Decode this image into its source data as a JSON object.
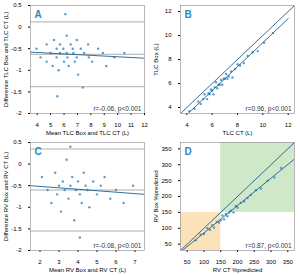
{
  "chart_data": [
    {
      "type": "scatter",
      "title": "A",
      "x_label": "Mean TLC Box and TLC CT (L)",
      "y_label": "Difference TLC Box and TLC CT (L)",
      "x": [
        3.95,
        4.25,
        4.7,
        4.7,
        5.0,
        5.25,
        5.15,
        5.45,
        5.45,
        5.7,
        5.7,
        5.6,
        5.95,
        6.2,
        6.0,
        6.2,
        6.25,
        6.5,
        6.35,
        6.65,
        6.7,
        6.95,
        6.8,
        6.95,
        7.25,
        7.05,
        7.5,
        7.8,
        7.85,
        8.1,
        8.55,
        8.9,
        9.15,
        9.75,
        10.5,
        6.1,
        5.5,
        7.4
      ],
      "y": [
        -0.5,
        -0.7,
        -0.4,
        -0.8,
        -0.6,
        -0.3,
        -0.9,
        -0.5,
        -0.7,
        -0.4,
        -0.6,
        -1.0,
        -0.5,
        -0.2,
        -0.8,
        -0.6,
        -0.7,
        -0.4,
        -0.9,
        -0.5,
        -0.6,
        -0.3,
        -0.8,
        -0.7,
        -0.5,
        -1.1,
        -0.6,
        -0.4,
        -0.7,
        -0.8,
        -0.5,
        -0.6,
        -0.9,
        -0.7,
        -0.6,
        0.3,
        -1.6,
        -1.4
      ],
      "color": "#2e86c1",
      "xlim": [
        3.5,
        12
      ],
      "ylim": [
        -2,
        0.5
      ],
      "xticks": [
        4,
        5,
        6,
        7,
        8,
        9,
        10,
        11,
        12
      ],
      "yticks": [
        -2,
        -1.5,
        -1,
        -0.5,
        0,
        0.5
      ],
      "annotation": "r=-0.06, p<0.001",
      "hlines": [
        0.12,
        -0.63,
        -1.38
      ],
      "lines": [
        {
          "x": [
            3.5,
            12
          ],
          "y": [
            -0.58,
            -0.72
          ],
          "color": "#1f5f8b"
        }
      ]
    },
    {
      "type": "scatter",
      "title": "B",
      "x_label": "TLC CT (L)",
      "y_label": "TLC Box (L)",
      "x": [
        4.2,
        4.6,
        4.9,
        5.1,
        5.3,
        5.4,
        5.6,
        5.7,
        5.8,
        5.9,
        6.0,
        6.1,
        6.2,
        6.3,
        6.4,
        6.5,
        6.6,
        6.7,
        6.8,
        6.9,
        7.0,
        7.1,
        7.2,
        7.3,
        7.5,
        7.6,
        7.8,
        8.0,
        8.2,
        8.5,
        8.8,
        9.2,
        9.6,
        10.1,
        10.8
      ],
      "y": [
        3.7,
        3.9,
        4.5,
        4.3,
        4.7,
        5.1,
        4.7,
        5.2,
        5.1,
        5.5,
        5.4,
        5.1,
        5.7,
        6.1,
        5.6,
        5.9,
        5.9,
        6.3,
        5.9,
        6.4,
        6.4,
        6.8,
        6.4,
        6.6,
        7.0,
        6.5,
        7.2,
        7.6,
        7.5,
        7.7,
        8.3,
        8.6,
        8.7,
        9.4,
        10.2
      ],
      "color": "#2e86c1",
      "xlim": [
        3.5,
        12.5
      ],
      "ylim": [
        3.5,
        12.5
      ],
      "xticks": [
        4,
        6,
        8,
        10,
        12
      ],
      "yticks": [
        4,
        6,
        8,
        10,
        12
      ],
      "annotation": "r=0.96, p<0.001",
      "hlines": [],
      "lines": [
        {
          "x": [
            3.5,
            12.5
          ],
          "y": [
            3.5,
            12.5
          ],
          "color": "#1f5f8b"
        },
        {
          "x": [
            4,
            12
          ],
          "y": [
            3.4,
            11.4
          ],
          "color": "#1f5f8b"
        }
      ]
    },
    {
      "type": "scatter",
      "title": "C",
      "x_label": "Mean RV Box and RV CT (L)",
      "y_label": "Difference RV Box and RV CT (L)",
      "x": [
        2.1,
        2.4,
        2.6,
        2.8,
        2.9,
        3.0,
        3.1,
        3.2,
        3.3,
        3.4,
        3.5,
        3.6,
        3.7,
        3.8,
        3.9,
        4.0,
        4.1,
        4.2,
        4.3,
        4.4,
        4.5,
        4.6,
        4.8,
        5.0,
        5.2,
        5.4,
        5.7,
        6.0,
        6.4,
        6.9,
        3.6,
        4.1
      ],
      "y": [
        -0.3,
        -0.6,
        -0.9,
        -0.2,
        -0.7,
        -0.5,
        -1.1,
        -0.4,
        -0.6,
        0.1,
        -0.8,
        -0.5,
        -0.3,
        -1.3,
        -0.6,
        -0.4,
        -0.7,
        -0.9,
        -0.2,
        -0.5,
        -0.6,
        -1.0,
        -0.4,
        -0.7,
        -0.5,
        -0.3,
        -0.8,
        -0.6,
        -0.9,
        -0.5,
        0.4,
        -1.7
      ],
      "color": "#2e86c1",
      "xlim": [
        1.5,
        7.5
      ],
      "ylim": [
        -2,
        0.5
      ],
      "xticks": [
        2,
        3,
        4,
        5,
        6,
        7
      ],
      "yticks": [
        -2,
        -1.5,
        -1,
        -0.5,
        0,
        0.5
      ],
      "annotation": "r=-0.08, p<0.001",
      "hlines": [
        0.35,
        -0.6,
        -1.55
      ],
      "lines": [
        {
          "x": [
            1.5,
            7.5
          ],
          "y": [
            -0.5,
            -0.7
          ],
          "color": "#1f5f8b"
        }
      ]
    },
    {
      "type": "scatter",
      "title": "D",
      "x_label": "RV CT %predicted",
      "y_label": "RV Box %predicted",
      "x": [
        75,
        90,
        100,
        110,
        118,
        125,
        130,
        138,
        145,
        150,
        155,
        160,
        165,
        170,
        175,
        180,
        188,
        195,
        200,
        210,
        220,
        230,
        240,
        255,
        270,
        290,
        310,
        330
      ],
      "y": [
        62,
        80,
        82,
        100,
        95,
        110,
        102,
        120,
        118,
        125,
        140,
        128,
        145,
        138,
        150,
        155,
        150,
        170,
        165,
        180,
        185,
        195,
        205,
        220,
        225,
        250,
        260,
        290
      ],
      "color": "#2e86c1",
      "xlim": [
        30,
        370
      ],
      "ylim": [
        30,
        370
      ],
      "xticks": [
        50,
        100,
        150,
        200,
        250,
        300,
        350
      ],
      "yticks": [
        50,
        100,
        150,
        200,
        250,
        300,
        350
      ],
      "annotation": "r=0.87, p<0.001",
      "hlines": [],
      "regions": [
        {
          "x": [
            150,
            370
          ],
          "y": [
            150,
            370
          ],
          "color": "#cfe8c9"
        },
        {
          "x": [
            30,
            150
          ],
          "y": [
            30,
            150
          ],
          "color": "#fbe2b8"
        }
      ],
      "lines": [
        {
          "x": [
            30,
            370
          ],
          "y": [
            30,
            370
          ],
          "color": "#1f5f8b"
        },
        {
          "x": [
            30,
            370
          ],
          "y": [
            25,
            318
          ],
          "color": "#1f5f8b"
        }
      ]
    }
  ]
}
